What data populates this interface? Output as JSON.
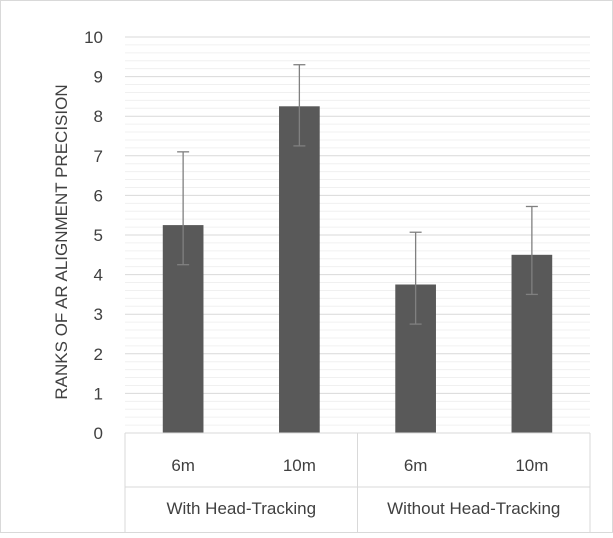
{
  "chart_data": {
    "type": "bar",
    "ylabel": "RANKS OF AR ALIGNMENT PRECISION",
    "ylim": [
      0,
      10
    ],
    "yticks": [
      0,
      1,
      2,
      3,
      4,
      5,
      6,
      7,
      8,
      9,
      10
    ],
    "minor_gridlines": true,
    "groups": [
      {
        "label": "With Head-Tracking",
        "categories": [
          "6m",
          "10m"
        ]
      },
      {
        "label": "Without Head-Tracking",
        "categories": [
          "6m",
          "10m"
        ]
      }
    ],
    "values": [
      5.25,
      8.25,
      3.75,
      4.5
    ],
    "error_bars": [
      {
        "low": 4.25,
        "high": 7.1
      },
      {
        "low": 7.25,
        "high": 9.3
      },
      {
        "low": 2.75,
        "high": 5.07
      },
      {
        "low": 3.5,
        "high": 5.72
      }
    ],
    "bar_color": "#595959",
    "error_bar_color": "#808080"
  }
}
